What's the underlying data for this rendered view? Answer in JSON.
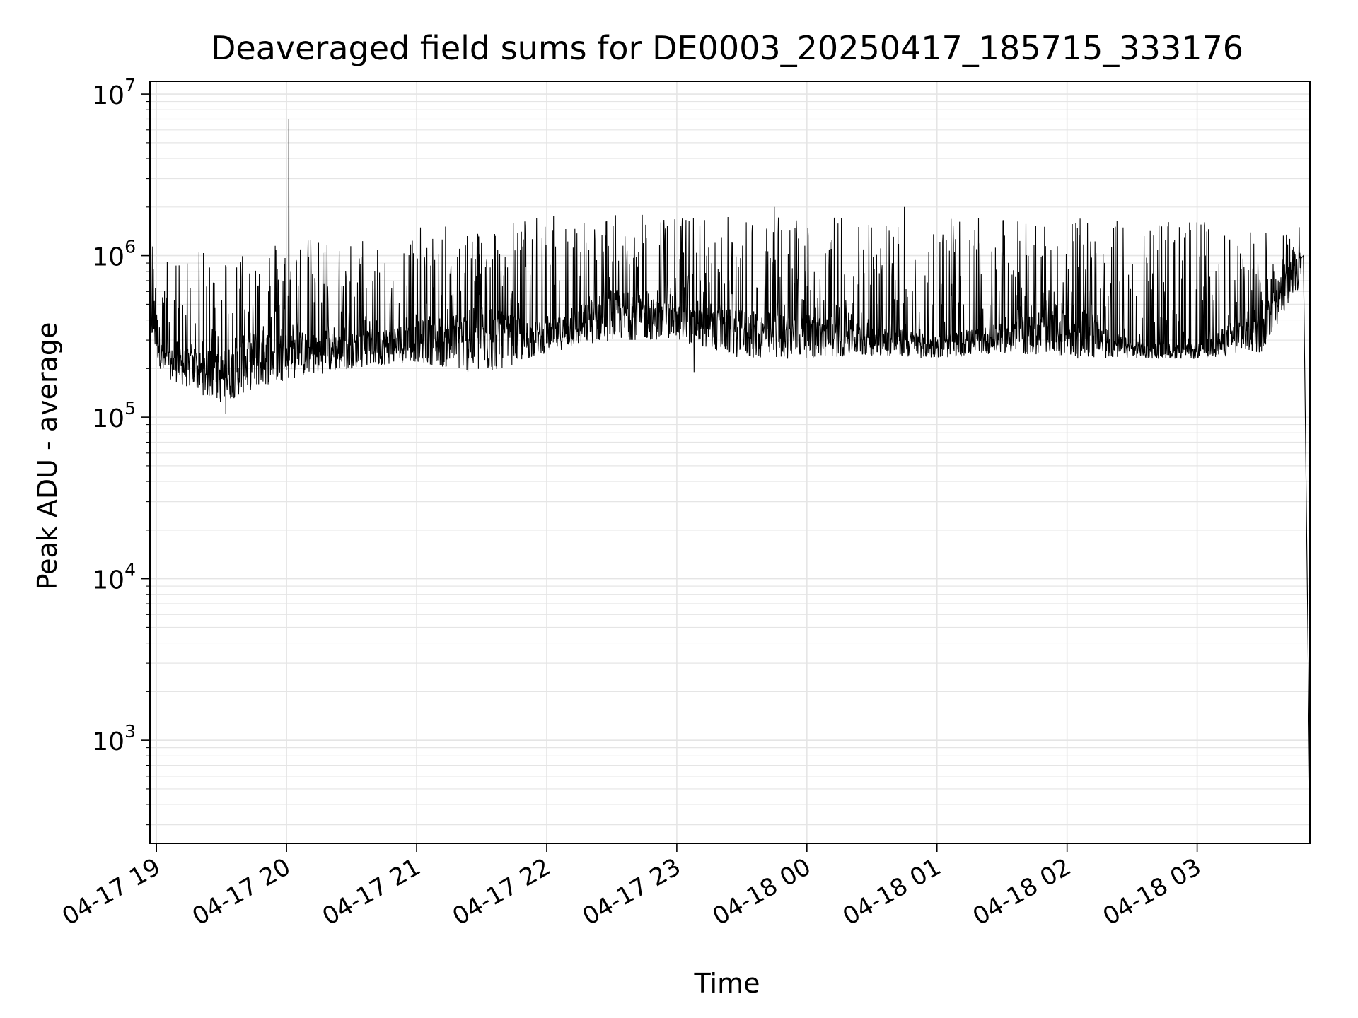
{
  "chart_data": {
    "type": "line",
    "title": "Deaveraged field sums for DE0003_20250417_185715_333176",
    "xlabel": "Time",
    "ylabel": "Peak ADU - average",
    "yscale": "log",
    "grid": "on (major and minor)",
    "legend": "none",
    "colors": {
      "line": "#000000",
      "grid": "#e5e5e5",
      "axes": "#000000",
      "background": "#ffffff"
    },
    "xlim": [
      "2025-04-17 18:57",
      "2025-04-18 03:52"
    ],
    "ylim": [
      230,
      12000000
    ],
    "x_ticks": [
      {
        "time": "2025-04-17 19:00",
        "label": "04-17 19"
      },
      {
        "time": "2025-04-17 20:00",
        "label": "04-17 20"
      },
      {
        "time": "2025-04-17 21:00",
        "label": "04-17 21"
      },
      {
        "time": "2025-04-17 22:00",
        "label": "04-17 22"
      },
      {
        "time": "2025-04-17 23:00",
        "label": "04-17 23"
      },
      {
        "time": "2025-04-18 00:00",
        "label": "04-18 00"
      },
      {
        "time": "2025-04-18 01:00",
        "label": "04-18 01"
      },
      {
        "time": "2025-04-18 02:00",
        "label": "04-18 02"
      },
      {
        "time": "2025-04-18 03:00",
        "label": "04-18 03"
      }
    ],
    "y_ticks": [
      {
        "value": 1000,
        "base": "10",
        "exp": "3"
      },
      {
        "value": 10000,
        "base": "10",
        "exp": "4"
      },
      {
        "value": 100000,
        "base": "10",
        "exp": "5"
      },
      {
        "value": 1000000,
        "base": "10",
        "exp": "6"
      },
      {
        "value": 10000000,
        "base": "10",
        "exp": "7"
      }
    ],
    "series": [
      {
        "envelope": [
          {
            "time": "2025-04-17 18:57",
            "low": 300000,
            "base": 700000,
            "high": 1500000
          },
          {
            "time": "2025-04-17 19:03",
            "low": 180000,
            "base": 250000,
            "high": 1000000
          },
          {
            "time": "2025-04-17 19:30",
            "low": 120000,
            "base": 220000,
            "high": 1100000
          },
          {
            "time": "2025-04-17 19:45",
            "low": 150000,
            "base": 300000,
            "high": 1300000
          },
          {
            "time": "2025-04-17 20:00",
            "low": 170000,
            "base": 300000,
            "high": 1300000
          },
          {
            "time": "2025-04-17 20:30",
            "low": 200000,
            "base": 300000,
            "high": 1300000
          },
          {
            "time": "2025-04-17 21:00",
            "low": 220000,
            "base": 350000,
            "high": 1500000
          },
          {
            "time": "2025-04-17 21:30",
            "low": 180000,
            "base": 400000,
            "high": 1600000
          },
          {
            "time": "2025-04-17 22:00",
            "low": 250000,
            "base": 350000,
            "high": 1800000
          },
          {
            "time": "2025-04-17 22:30",
            "low": 300000,
            "base": 550000,
            "high": 1800000
          },
          {
            "time": "2025-04-17 23:00",
            "low": 300000,
            "base": 450000,
            "high": 1800000
          },
          {
            "time": "2025-04-17 23:30",
            "low": 230000,
            "base": 400000,
            "high": 1800000
          },
          {
            "time": "2025-04-18 00:00",
            "low": 230000,
            "base": 380000,
            "high": 1800000
          },
          {
            "time": "2025-04-18 00:30",
            "low": 240000,
            "base": 350000,
            "high": 1800000
          },
          {
            "time": "2025-04-18 01:00",
            "low": 230000,
            "base": 300000,
            "high": 1700000
          },
          {
            "time": "2025-04-18 01:30",
            "low": 250000,
            "base": 350000,
            "high": 1700000
          },
          {
            "time": "2025-04-18 02:00",
            "low": 230000,
            "base": 450000,
            "high": 1700000
          },
          {
            "time": "2025-04-18 02:30",
            "low": 230000,
            "base": 280000,
            "high": 1700000
          },
          {
            "time": "2025-04-18 03:00",
            "low": 230000,
            "base": 270000,
            "high": 1700000
          },
          {
            "time": "2025-04-18 03:30",
            "low": 250000,
            "base": 450000,
            "high": 1400000
          },
          {
            "time": "2025-04-18 03:45",
            "low": 600000,
            "base": 900000,
            "high": 1400000
          }
        ],
        "points": [
          {
            "time": "2025-04-17 20:01",
            "value": 7000000
          },
          {
            "time": "2025-04-17 19:32",
            "value": 105000
          },
          {
            "time": "2025-04-17 23:08",
            "value": 190000
          },
          {
            "time": "2025-04-17 23:45",
            "value": 2000000
          },
          {
            "time": "2025-04-18 00:45",
            "value": 2000000
          },
          {
            "time": "2025-04-18 03:47",
            "value": 1500000
          },
          {
            "time": "2025-04-18 03:49",
            "value": 1000000
          },
          {
            "time": "2025-04-18 03:52",
            "value": 380
          }
        ]
      }
    ]
  }
}
